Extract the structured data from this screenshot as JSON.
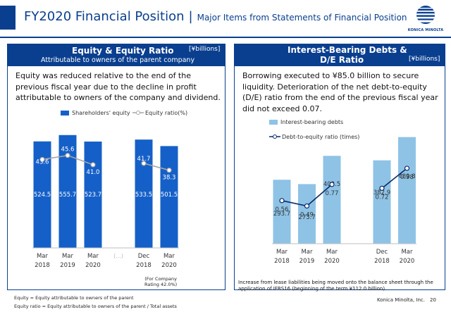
{
  "header": {
    "title": "FY2020 Financial Position",
    "separator": "|",
    "subtitle": "Major Items from Statements of Financial Position",
    "logo_text": "KONICA MINOLTA"
  },
  "left_panel": {
    "title": "Equity & Equity Ratio",
    "subtitle": "Attributable to owners of the parent company",
    "unit": "[¥billions]",
    "description": "Equity was reduced relative to the end of the previous fiscal year due to the decline in profit attributable to owners of the company and dividend.",
    "company_note": [
      "(For Company",
      "Rating 42.0%)"
    ]
  },
  "right_panel": {
    "title_line1": "Interest-Bearing Debts &",
    "title_line2": "D/E Ratio",
    "unit": "[¥billions]",
    "description": "Borrowing executed to ¥85.0 billion to secure liquidity. Deterioration of the net debt-to-equity (D/E) ratio from the end of the previous fiscal year did not exceed 0.07.",
    "note": "Increase from lease liabilities being moved onto the balance sheet through the application of IFRS16 (beginning of the term ¥112.0 billion)."
  },
  "footnotes": {
    "line1": "Equity = Equity attributable to owners of the parent",
    "line2": "Equity ratio = Equity attributable to owners of the parent / Total assets"
  },
  "footer": {
    "company": "Konica Minolta, Inc.",
    "page": "20"
  },
  "colors": {
    "brand": "#0a3f8f",
    "equity_bar": "#1560c8",
    "debt_bar": "#8ec3e6",
    "ratio_line_left": "#a6a6a6",
    "ratio_line_right": "#0a2a6b"
  },
  "chart_data": [
    {
      "type": "bar",
      "legend": [
        "Shareholders' equity",
        "Equity ratio(%)"
      ],
      "legend_position": "top",
      "categories": [
        [
          "Mar",
          "2018"
        ],
        [
          "Mar",
          "2019"
        ],
        [
          "Mar",
          "2020"
        ],
        [
          "",
          ""
        ],
        [
          "Dec",
          "2018"
        ],
        [
          "Mar",
          "2020"
        ]
      ],
      "gap_label": "(...)",
      "series": [
        {
          "name": "Shareholders' equity",
          "kind": "bar",
          "values": [
            524.5,
            555.7,
            523.7,
            null,
            533.5,
            501.5
          ]
        },
        {
          "name": "Equity ratio(%)",
          "kind": "line",
          "segments": [
            [
              0,
              1,
              2
            ],
            [
              4,
              5
            ]
          ],
          "values": [
            43.6,
            45.6,
            41.0,
            null,
            41.7,
            38.3
          ]
        }
      ],
      "ylim": [
        0,
        600
      ],
      "ratio_range": [
        0,
        50
      ],
      "grid": false
    },
    {
      "type": "bar",
      "legend": [
        "Interest-bearing debts",
        "Debt-to-equity ratio (times)"
      ],
      "legend_position": "top-left",
      "categories": [
        [
          "Mar",
          "2018"
        ],
        [
          "Mar",
          "2019"
        ],
        [
          "Mar",
          "2020"
        ],
        [
          "",
          ""
        ],
        [
          "Dec",
          "2018"
        ],
        [
          "Mar",
          "2020"
        ]
      ],
      "series": [
        {
          "name": "Interest-bearing debts",
          "kind": "bar",
          "values": [
            293.7,
            273.7,
            403.5,
            null,
            382.9,
            489.8
          ]
        },
        {
          "name": "Debt-to-equity ratio (times)",
          "kind": "line",
          "segments": [
            [
              0,
              1,
              2
            ],
            [
              4,
              5
            ]
          ],
          "values": [
            0.56,
            0.49,
            0.77,
            null,
            0.72,
            0.98
          ]
        }
      ],
      "ylim": [
        0,
        550
      ],
      "ratio_range": [
        0,
        1.3
      ],
      "grid": false
    }
  ]
}
